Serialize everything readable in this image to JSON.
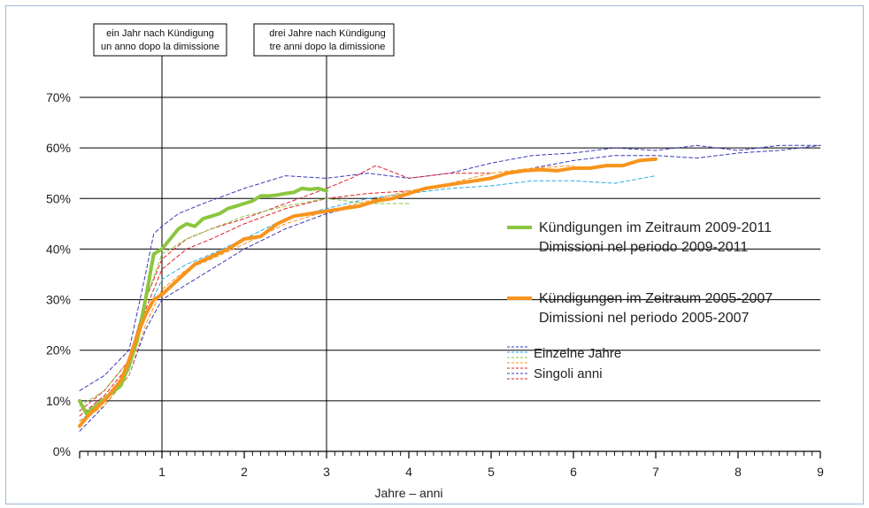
{
  "chart_data": {
    "type": "line",
    "xlabel": "Jahre – anni",
    "ylabel": "",
    "xlim": [
      0,
      9
    ],
    "ylim": [
      0,
      70
    ],
    "x_ticks": [
      "1",
      "2",
      "3",
      "4",
      "5",
      "6",
      "7",
      "8",
      "9"
    ],
    "y_ticks": [
      "0%",
      "10%",
      "20%",
      "30%",
      "40%",
      "50%",
      "60%",
      "70%"
    ],
    "grid": "horizontal",
    "legend_position": "right",
    "annotations": [
      {
        "x": 1,
        "line1": "ein Jahr nach Kündigung",
        "line2": "un anno dopo la dimissione"
      },
      {
        "x": 3,
        "line1": "drei Jahre nach Kündigung",
        "line2": "tre anni dopo la dimissione"
      }
    ],
    "legend": {
      "main": [
        {
          "line1": "Kündigungen im Zeitraum 2009-2011",
          "line2": "Dimissioni nel periodo 2009-2011",
          "color": "#8cc63f"
        },
        {
          "line1": "Kündigungen im Zeitraum 2005-2007",
          "line2": "Dimissioni nel periodo 2005-2007",
          "color": "#f7941d"
        }
      ],
      "singles": {
        "line1": "Einzelne Jahre",
        "line2": "Singoli anni"
      }
    },
    "series": [
      {
        "name": "Kündigungen im Zeitraum 2009-2011",
        "color": "#8cc63f",
        "width": 4,
        "dashed": false,
        "x": [
          0,
          0.08,
          0.2,
          0.35,
          0.5,
          0.6,
          0.7,
          0.8,
          0.9,
          1.0,
          1.1,
          1.2,
          1.3,
          1.4,
          1.5,
          1.6,
          1.7,
          1.8,
          1.9,
          2.0,
          2.1,
          2.2,
          2.3,
          2.4,
          2.5,
          2.6,
          2.7,
          2.8,
          2.9,
          3.0
        ],
        "y": [
          10,
          7.5,
          9,
          11,
          13,
          17,
          22,
          30,
          39,
          40,
          42,
          44,
          45,
          44.5,
          46,
          46.5,
          47,
          48,
          48.5,
          49,
          49.5,
          50.5,
          50.5,
          50.7,
          51,
          51.2,
          52,
          51.8,
          52,
          51.5
        ]
      },
      {
        "name": "Kündigungen im Zeitraum 2005-2007",
        "color": "#f7941d",
        "width": 4,
        "dashed": false,
        "x": [
          0,
          0.1,
          0.2,
          0.3,
          0.4,
          0.5,
          0.6,
          0.7,
          0.8,
          0.9,
          1.0,
          1.2,
          1.4,
          1.6,
          1.8,
          2.0,
          2.2,
          2.4,
          2.6,
          2.8,
          3.0,
          3.2,
          3.4,
          3.6,
          3.8,
          4.0,
          4.2,
          4.4,
          4.6,
          4.8,
          5.0,
          5.2,
          5.4,
          5.6,
          5.8,
          6.0,
          6.2,
          6.4,
          6.6,
          6.8,
          7.0
        ],
        "y": [
          5,
          7,
          8.5,
          10,
          12,
          14,
          18,
          23,
          27,
          30,
          31,
          34,
          37,
          38.5,
          40,
          42,
          42.5,
          45,
          46.5,
          47,
          47.5,
          48,
          48.5,
          49.5,
          50,
          51,
          52,
          52.5,
          53,
          53.5,
          54,
          55,
          55.5,
          55.7,
          55.5,
          56,
          56,
          56.5,
          56.5,
          57.5,
          57.8
        ]
      },
      {
        "color": "#3a3ab8",
        "width": 1,
        "dashed": true,
        "x": [
          0,
          0.3,
          0.6,
          0.8,
          0.9,
          1.0,
          1.2,
          1.5,
          2.0,
          2.5,
          3.0,
          3.5,
          4.0,
          4.5,
          5.0,
          5.5,
          6.0,
          6.5,
          7.0,
          7.5,
          8.0,
          8.5,
          9.0
        ],
        "y": [
          12,
          15,
          20,
          35,
          43,
          44.5,
          47,
          49,
          52,
          54.5,
          54,
          55,
          54,
          55,
          57,
          58.5,
          59,
          60,
          59.5,
          60.5,
          59.5,
          60.5,
          60.5
        ]
      },
      {
        "color": "#3a3ab8",
        "width": 1,
        "dashed": true,
        "x": [
          0,
          0.3,
          0.6,
          0.8,
          1.0,
          1.5,
          2.0,
          2.5,
          3.0,
          3.5,
          4.0,
          4.5,
          5.0,
          5.5,
          6.0,
          6.5,
          7.0,
          7.5,
          8.0,
          8.5,
          9.0
        ],
        "y": [
          4,
          9,
          15,
          24,
          30,
          35,
          40,
          44,
          47,
          49,
          51,
          53,
          54,
          56,
          57.5,
          58.5,
          58.5,
          58,
          59,
          59.5,
          60.5
        ]
      },
      {
        "color": "#29abe2",
        "width": 1,
        "dashed": true,
        "x": [
          0,
          0.3,
          0.6,
          0.8,
          1.0,
          1.3,
          1.6,
          2.0,
          2.5,
          3.0,
          3.5,
          4.0,
          4.5,
          5.0,
          5.5,
          6.0,
          6.5,
          7.0
        ],
        "y": [
          6,
          10,
          16,
          27,
          34,
          37,
          39,
          42,
          46,
          48,
          50,
          51,
          52,
          52.5,
          53.5,
          53.5,
          53,
          54.5
        ]
      },
      {
        "color": "#e0202a",
        "width": 1,
        "dashed": true,
        "x": [
          0,
          0.3,
          0.6,
          0.8,
          1.0,
          1.3,
          1.6,
          2.0,
          2.5,
          3.0,
          3.3,
          3.6,
          4.0,
          4.5,
          5.0
        ],
        "y": [
          8,
          12,
          18,
          30,
          38,
          42,
          44,
          46,
          49,
          52,
          54,
          56.5,
          54,
          55,
          55
        ]
      },
      {
        "color": "#e0202a",
        "width": 1,
        "dashed": true,
        "x": [
          0,
          0.3,
          0.6,
          0.8,
          1.0,
          1.3,
          1.6,
          2.0,
          2.5,
          3.0,
          3.5,
          4.0
        ],
        "y": [
          7,
          11,
          17,
          28,
          36,
          40,
          42,
          45,
          48,
          50,
          51,
          51.5
        ]
      },
      {
        "color": "#8cc63f",
        "width": 1,
        "dashed": true,
        "x": [
          0,
          0.3,
          0.6,
          0.8,
          1.0,
          1.3,
          1.6,
          2.0,
          2.5,
          3.0,
          3.5,
          4.0
        ],
        "y": [
          9,
          12,
          18,
          30,
          39,
          42,
          44,
          46.5,
          48.5,
          50,
          49,
          49
        ]
      },
      {
        "color": "#f7941d",
        "width": 1,
        "dashed": true,
        "x": [
          0,
          0.3,
          0.6,
          0.8,
          1.0,
          1.3,
          1.6,
          2.0,
          2.5,
          3.0,
          3.5,
          4.0,
          4.5,
          5.0,
          5.5,
          6.0
        ],
        "y": [
          6,
          9,
          15,
          25,
          32,
          36,
          38,
          41,
          45,
          47.5,
          49.5,
          51.5,
          53,
          55,
          56,
          56.5
        ]
      }
    ]
  }
}
